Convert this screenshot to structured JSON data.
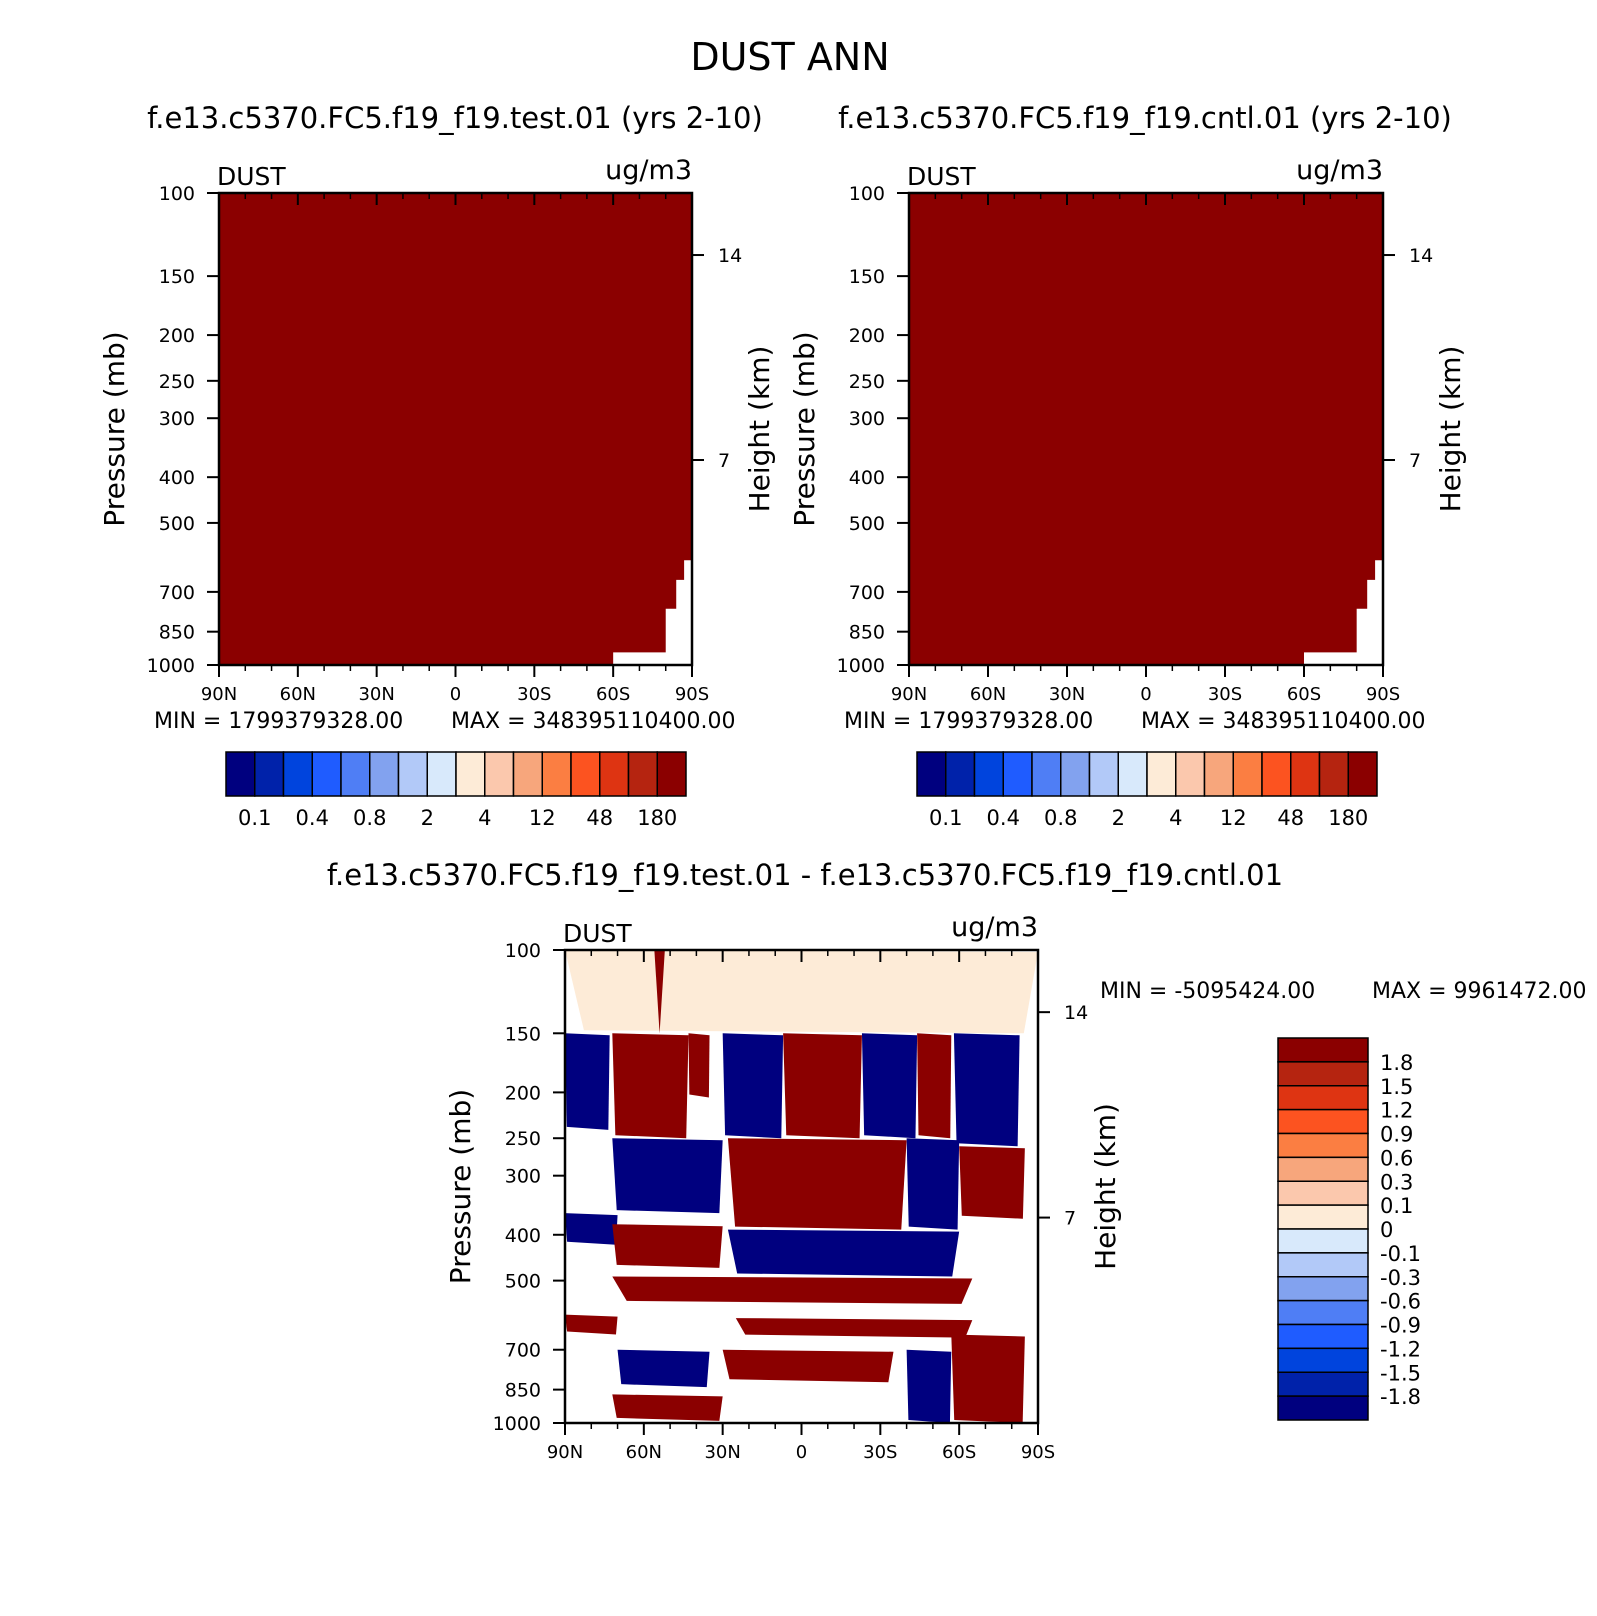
{
  "figure_title": "DUST ANN",
  "colors": {
    "test_palette": [
      "#00007f",
      "#0022aa",
      "#0044dd",
      "#1f5cff",
      "#4f7ef5",
      "#82a2ef",
      "#b2c9f8",
      "#d8e9fb",
      "#fdebd7",
      "#fbc8ad",
      "#f7a67c",
      "#fb7e42",
      "#fc5320",
      "#de3412",
      "#b52410",
      "#8b0000"
    ],
    "diff_palette": [
      "#00007f",
      "#0022aa",
      "#0044dd",
      "#1f5cff",
      "#4f7ef5",
      "#82a2ef",
      "#b2c9f8",
      "#d8e9fb",
      "#fdebd7",
      "#fbc8ad",
      "#f7a67c",
      "#fb7e42",
      "#fc5320",
      "#de3412",
      "#b52410",
      "#8b0000"
    ],
    "dark_red": "#8b0000",
    "dark_blue": "#00007f",
    "cream": "#fdebd7"
  },
  "chart_data": [
    {
      "type": "heatmap",
      "panel": "test",
      "title": "f.e13.c5370.FC5.f19_f19.test.01 (yrs 2-10)",
      "var_label": "DUST",
      "units": "ug/m3",
      "ylabel": "Pressure (mb)",
      "ylabel_right": "Height (km)",
      "x_ticks": [
        "90N",
        "60N",
        "30N",
        "0",
        "30S",
        "60S",
        "90S"
      ],
      "x_values": [
        90,
        60,
        30,
        0,
        -30,
        -60,
        -90
      ],
      "y_ticks": [
        100,
        150,
        200,
        250,
        300,
        400,
        500,
        700,
        850,
        1000
      ],
      "y_range": [
        100,
        1000
      ],
      "right_ticks": [
        {
          "km": 14,
          "label": "14"
        },
        {
          "km": 7,
          "label": "7"
        }
      ],
      "fill": "uniform maximum contour level (>180) except near-surface southern edge",
      "min_label": "MIN = 1799379328.00",
      "max_label": "MAX = 348395110400.00",
      "colorbar_labels": [
        "0.1",
        "0.4",
        "0.8",
        "2",
        "4",
        "12",
        "48",
        "180"
      ],
      "colorbar_levels": 16
    },
    {
      "type": "heatmap",
      "panel": "cntl",
      "title": "f.e13.c5370.FC5.f19_f19.cntl.01 (yrs 2-10)",
      "var_label": "DUST",
      "units": "ug/m3",
      "ylabel": "Pressure (mb)",
      "ylabel_right": "Height (km)",
      "x_ticks": [
        "90N",
        "60N",
        "30N",
        "0",
        "30S",
        "60S",
        "90S"
      ],
      "x_values": [
        90,
        60,
        30,
        0,
        -30,
        -60,
        -90
      ],
      "y_ticks": [
        100,
        150,
        200,
        250,
        300,
        400,
        500,
        700,
        850,
        1000
      ],
      "y_range": [
        100,
        1000
      ],
      "right_ticks": [
        {
          "km": 14,
          "label": "14"
        },
        {
          "km": 7,
          "label": "7"
        }
      ],
      "fill": "uniform maximum contour level (>180) except near-surface southern edge",
      "min_label": "MIN = 1799379328.00",
      "max_label": "MAX = 348395110400.00",
      "colorbar_labels": [
        "0.1",
        "0.4",
        "0.8",
        "2",
        "4",
        "12",
        "48",
        "180"
      ],
      "colorbar_levels": 16
    },
    {
      "type": "heatmap",
      "panel": "difference",
      "title": "f.e13.c5370.FC5.f19_f19.test.01 - f.e13.c5370.FC5.f19_f19.cntl.01",
      "var_label": "DUST",
      "units": "ug/m3",
      "ylabel": "Pressure (mb)",
      "ylabel_right": "Height (km)",
      "x_ticks": [
        "90N",
        "60N",
        "30N",
        "0",
        "30S",
        "60S",
        "90S"
      ],
      "x_values": [
        90,
        60,
        30,
        0,
        -30,
        -60,
        -90
      ],
      "y_ticks": [
        100,
        150,
        200,
        250,
        300,
        400,
        500,
        700,
        850,
        1000
      ],
      "y_range": [
        100,
        1000
      ],
      "right_ticks": [
        {
          "km": 14,
          "label": "14"
        },
        {
          "km": 7,
          "label": "7"
        }
      ],
      "min_label": "MIN = -5095424.00",
      "max_label": "MAX = 9961472.00",
      "colorbar_labels": [
        "1.8",
        "1.5",
        "1.2",
        "0.9",
        "0.6",
        "0.3",
        "0.1",
        "0",
        "-0.1",
        "-0.3",
        "-0.6",
        "-0.9",
        "-1.2",
        "-1.5",
        "-1.8"
      ],
      "colorbar_levels": 16,
      "regions": [
        {
          "name": "upper-positive-small",
          "p_top": 100,
          "p_bot": 150,
          "lat_from": 90,
          "lat_to": -90,
          "class": "slight-positive"
        },
        {
          "name": "spike",
          "p_top": 100,
          "p_bot": 150,
          "lat_from": 56,
          "lat_to": 52,
          "class": "strong-positive"
        },
        {
          "name": "blue-col-a",
          "p_top": 150,
          "p_bot": 240,
          "lat_from": 90,
          "lat_to": 73,
          "class": "strong-negative"
        },
        {
          "name": "red-col-a",
          "p_top": 150,
          "p_bot": 250,
          "lat_from": 72,
          "lat_to": 43,
          "class": "strong-positive"
        },
        {
          "name": "red-col-b",
          "p_top": 150,
          "p_bot": 205,
          "lat_from": 43,
          "lat_to": 35,
          "class": "strong-positive"
        },
        {
          "name": "blue-col-b",
          "p_top": 150,
          "p_bot": 250,
          "lat_from": 30,
          "lat_to": 7,
          "class": "strong-negative"
        },
        {
          "name": "red-col-c",
          "p_top": 150,
          "p_bot": 250,
          "lat_from": 7,
          "lat_to": -23,
          "class": "strong-positive"
        },
        {
          "name": "blue-col-c",
          "p_top": 150,
          "p_bot": 250,
          "lat_from": -23,
          "lat_to": -44,
          "class": "strong-negative"
        },
        {
          "name": "red-col-d",
          "p_top": 150,
          "p_bot": 250,
          "lat_from": -44,
          "lat_to": -57,
          "class": "strong-positive"
        },
        {
          "name": "blue-col-d",
          "p_top": 150,
          "p_bot": 260,
          "lat_from": -58,
          "lat_to": -83,
          "class": "strong-negative"
        },
        {
          "name": "blue-band-300",
          "p_top": 250,
          "p_bot": 360,
          "lat_from": 72,
          "lat_to": 30,
          "class": "strong-negative"
        },
        {
          "name": "red-band-300",
          "p_top": 250,
          "p_bot": 390,
          "lat_from": 28,
          "lat_to": -40,
          "class": "strong-positive"
        },
        {
          "name": "blue-band-300b",
          "p_top": 250,
          "p_bot": 390,
          "lat_from": -40,
          "lat_to": -60,
          "class": "strong-negative"
        },
        {
          "name": "red-band-300c",
          "p_top": 260,
          "p_bot": 370,
          "lat_from": -60,
          "lat_to": -85,
          "class": "strong-positive"
        },
        {
          "name": "blue-band-400",
          "p_top": 360,
          "p_bot": 420,
          "lat_from": 90,
          "lat_to": 70,
          "class": "strong-negative"
        },
        {
          "name": "red-band-430",
          "p_top": 380,
          "p_bot": 470,
          "lat_from": 72,
          "lat_to": 30,
          "class": "strong-positive"
        },
        {
          "name": "blue-band-440",
          "p_top": 390,
          "p_bot": 490,
          "lat_from": 28,
          "lat_to": -60,
          "class": "strong-negative"
        },
        {
          "name": "red-band-520",
          "p_top": 490,
          "p_bot": 560,
          "lat_from": 72,
          "lat_to": -65,
          "class": "strong-positive"
        },
        {
          "name": "red-band-620",
          "p_top": 590,
          "p_bot": 650,
          "lat_from": 90,
          "lat_to": 70,
          "class": "strong-positive"
        },
        {
          "name": "red-band-650",
          "p_top": 600,
          "p_bot": 660,
          "lat_from": 25,
          "lat_to": -65,
          "class": "strong-positive"
        },
        {
          "name": "blue-band-760",
          "p_top": 700,
          "p_bot": 840,
          "lat_from": 70,
          "lat_to": 35,
          "class": "strong-negative"
        },
        {
          "name": "red-band-760",
          "p_top": 700,
          "p_bot": 820,
          "lat_from": 30,
          "lat_to": -35,
          "class": "strong-positive"
        },
        {
          "name": "red-band-sfc",
          "p_top": 870,
          "p_bot": 990,
          "lat_from": 72,
          "lat_to": 30,
          "class": "strong-positive"
        },
        {
          "name": "red-band-sfc2",
          "p_top": 650,
          "p_bot": 1000,
          "lat_from": -57,
          "lat_to": -85,
          "class": "strong-positive"
        },
        {
          "name": "blue-band-sfc",
          "p_top": 700,
          "p_bot": 1000,
          "lat_from": -40,
          "lat_to": -57,
          "class": "strong-negative"
        }
      ]
    }
  ]
}
